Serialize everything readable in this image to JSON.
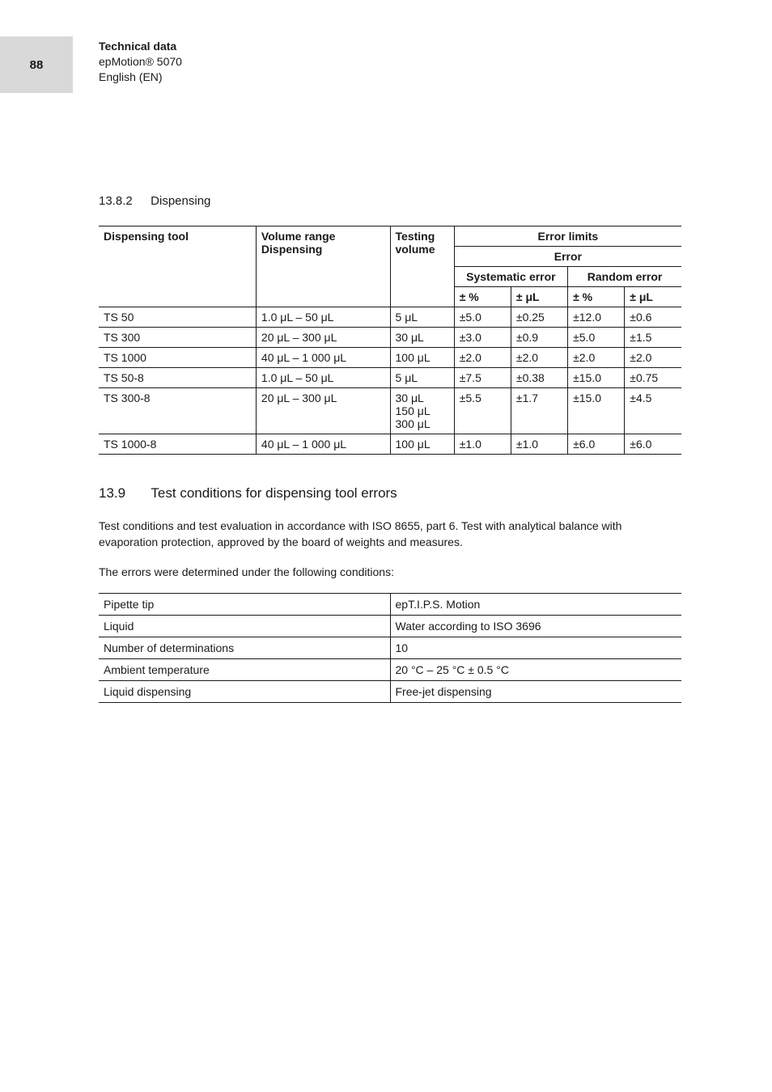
{
  "page_number": "88",
  "header": {
    "title": "Technical data",
    "product": "epMotion® 5070",
    "lang": "English (EN)"
  },
  "section_dispensing": {
    "number": "13.8.2",
    "title": "Dispensing"
  },
  "dispensing_table": {
    "head": {
      "tool": "Dispensing tool",
      "range_top": "Volume range",
      "range_sub": "Dispensing",
      "test_top": "Testing",
      "test_sub": "volume",
      "limits": "Error limits",
      "error": "Error",
      "sys": "Systematic error",
      "rand": "Random error",
      "pct": "± %",
      "ul": "± μL"
    },
    "rows": [
      {
        "tool": "TS 50",
        "range": "1.0 μL – 50 μL",
        "test": "5 μL",
        "sys_pct": "±5.0",
        "sys_ul": "±0.25",
        "rand_pct": "±12.0",
        "rand_ul": "±0.6"
      },
      {
        "tool": "TS 300",
        "range": "20 μL – 300 μL",
        "test": "30 μL",
        "sys_pct": "±3.0",
        "sys_ul": "±0.9",
        "rand_pct": "±5.0",
        "rand_ul": "±1.5"
      },
      {
        "tool": "TS 1000",
        "range": "40 μL – 1 000 μL",
        "test": "100 μL",
        "sys_pct": "±2.0",
        "sys_ul": "±2.0",
        "rand_pct": "±2.0",
        "rand_ul": "±2.0"
      },
      {
        "tool": "TS 50-8",
        "range": "1.0 μL – 50 μL",
        "test": "5 μL",
        "sys_pct": "±7.5",
        "sys_ul": "±0.38",
        "rand_pct": "±15.0",
        "rand_ul": "±0.75"
      },
      {
        "tool": "TS 300-8",
        "range": "20 μL – 300 μL",
        "test": "30 μL\n150 μL\n300 μL",
        "sys_pct": "±5.5",
        "sys_ul": "±1.7",
        "rand_pct": "±15.0",
        "rand_ul": "±4.5"
      },
      {
        "tool": "TS 1000-8",
        "range": "40 μL – 1 000 μL",
        "test": "100 μL",
        "sys_pct": "±1.0",
        "sys_ul": "±1.0",
        "rand_pct": "±6.0",
        "rand_ul": "±6.0"
      }
    ]
  },
  "section_conditions": {
    "number": "13.9",
    "title": "Test conditions for dispensing tool errors",
    "para1": "Test conditions and test evaluation in accordance with ISO 8655, part 6. Test with analytical balance with evaporation protection, approved by the board of weights and measures.",
    "para2": "The errors were determined under the following conditions:"
  },
  "conditions_table": {
    "rows": [
      {
        "k": "Pipette tip",
        "v": "epT.I.P.S. Motion"
      },
      {
        "k": "Liquid",
        "v": "Water according to ISO 3696"
      },
      {
        "k": "Number of determinations",
        "v": "10"
      },
      {
        "k": "Ambient temperature",
        "v": "20 °C – 25 °C ± 0.5 °C"
      },
      {
        "k": "Liquid dispensing",
        "v": "Free-jet dispensing"
      }
    ]
  },
  "colors": {
    "tab_bg": "#d9d9d9",
    "text": "#1a1a1a",
    "rule": "#1a1a1a",
    "page_bg": "#ffffff"
  },
  "fonts": {
    "body_pt": 14,
    "heading_pt": 15,
    "h2_pt": 17,
    "tab_pt": 15
  }
}
